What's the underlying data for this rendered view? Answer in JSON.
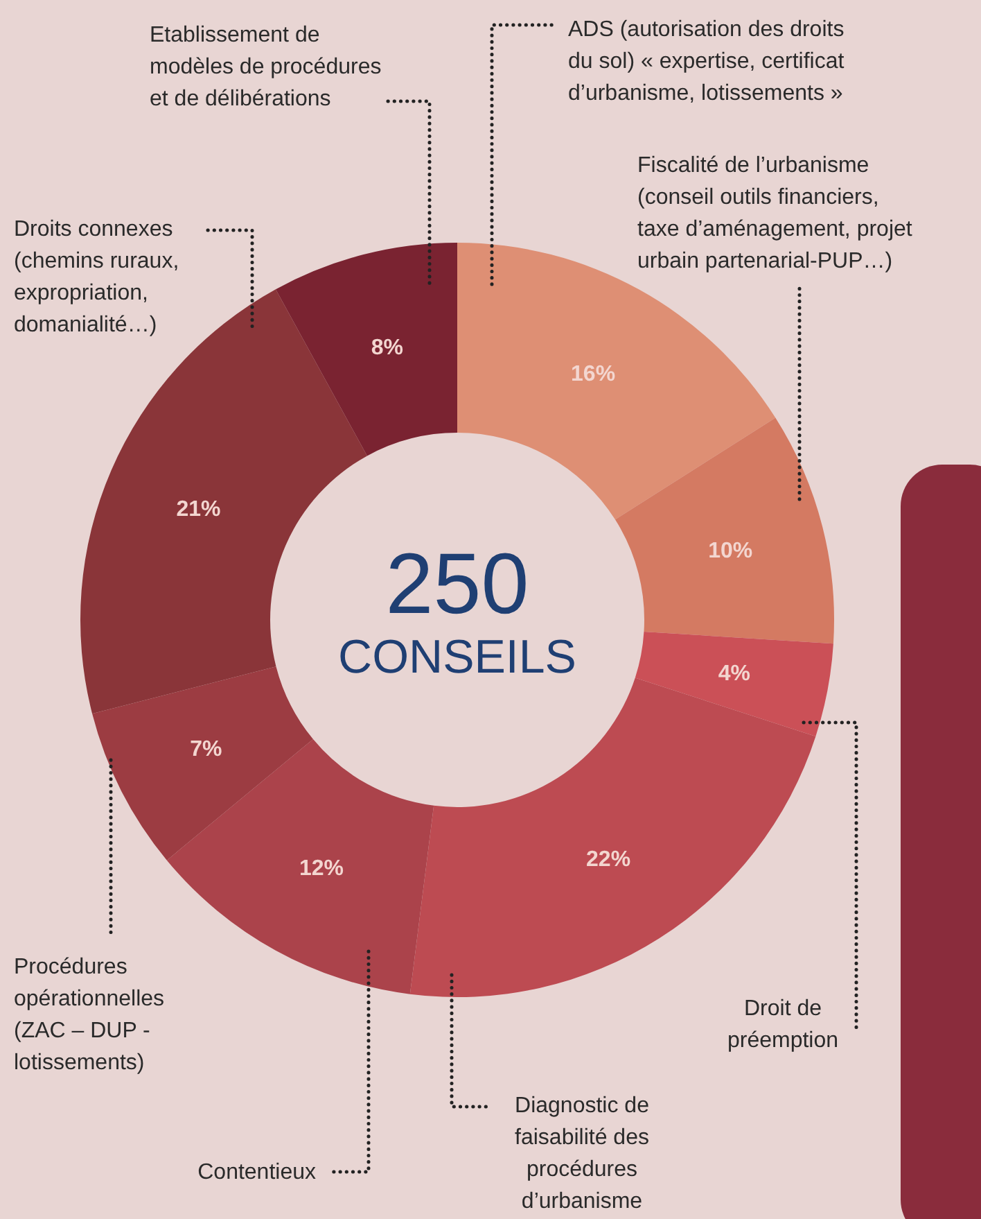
{
  "chart_data": {
    "type": "donut",
    "categories": [
      "ADS (autorisation des droits\ndu sol) « expertise, certificat\nd’urbanisme,  lotissements »",
      "Fiscalité de l’urbanisme\n(conseil outils financiers,\ntaxe d’aménagement, projet\nurbain partenarial-PUP…)",
      "Droit de\npréemption",
      "Diagnostic de\nfaisabilité des\nprocédures\nd’urbanisme",
      "Contentieux",
      "Procédures\nopérationnelles\n(ZAC – DUP -\nlotissements)",
      "Droits connexes\n(chemins ruraux,\nexpropriation,\ndomanialité…)",
      "Etablissement de\nmodèles de procédures\net de délibérations"
    ],
    "values": [
      16,
      10,
      4,
      22,
      12,
      7,
      21,
      8
    ],
    "colors": [
      "#de8f74",
      "#d47a62",
      "#cb5057",
      "#bd4b52",
      "#ab434b",
      "#9c3c42",
      "#8a3539",
      "#7a2331"
    ],
    "value_labels": [
      "16%",
      "10%",
      "4%",
      "22%",
      "12%",
      "7%",
      "21%",
      "8%"
    ],
    "annotations": [
      "250",
      "CONSEILS"
    ]
  }
}
